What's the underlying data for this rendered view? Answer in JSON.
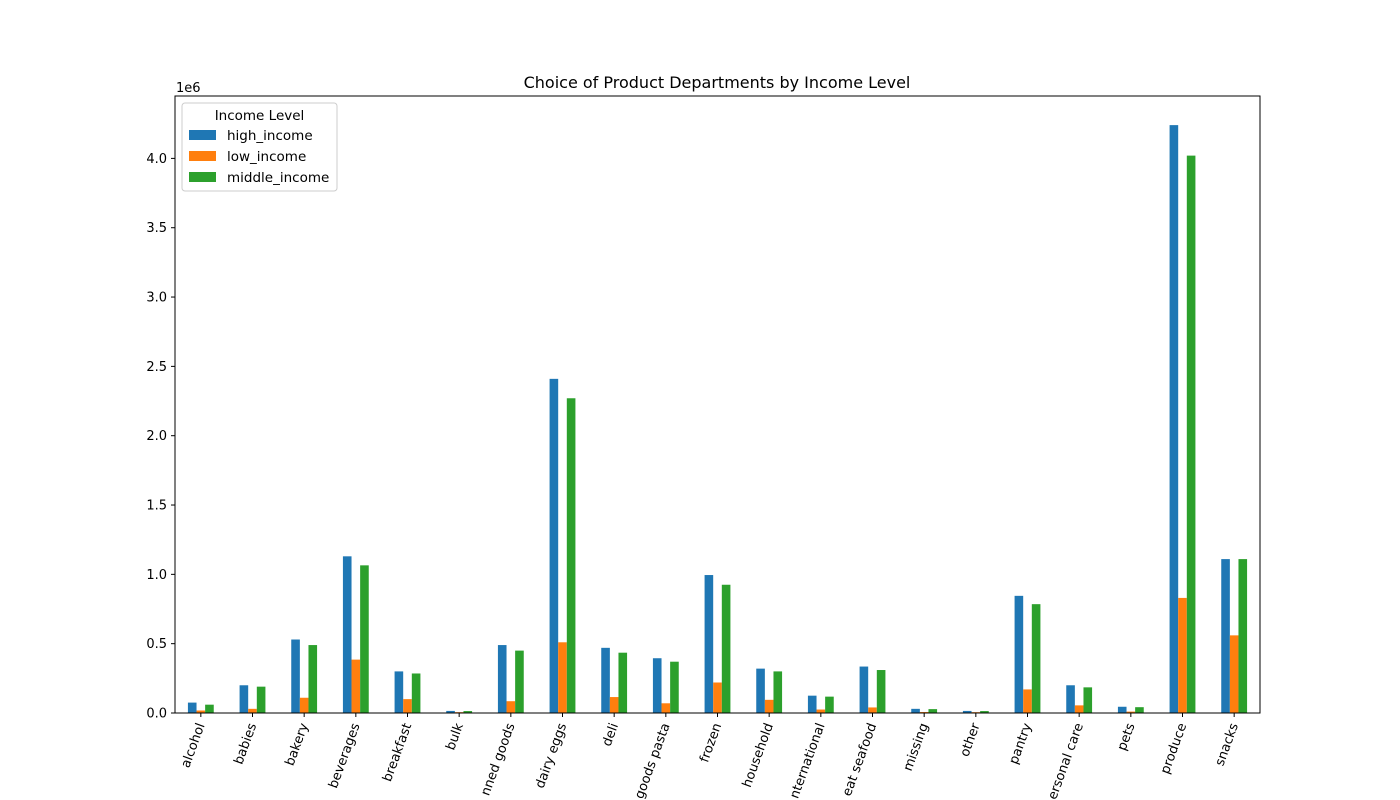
{
  "chart_data": {
    "type": "bar",
    "title": "Choice of Product Departments by Income Level",
    "xlabel": "",
    "ylabel": "",
    "y_offset_label": "1e6",
    "ylim": [
      0,
      4.45
    ],
    "yticks": [
      "0.0",
      "0.5",
      "1.0",
      "1.5",
      "2.0",
      "2.5",
      "3.0",
      "3.5",
      "4.0"
    ],
    "grid": false,
    "legend": {
      "title": "Income Level",
      "placement": "top-left"
    },
    "categories": [
      "alcohol",
      "babies",
      "bakery",
      "beverages",
      "breakfast",
      "bulk",
      "canned goods",
      "dairy eggs",
      "deli",
      "dry goods pasta",
      "frozen",
      "household",
      "international",
      "meat seafood",
      "missing",
      "other",
      "pantry",
      "personal care",
      "pets",
      "produce",
      "snacks"
    ],
    "category_labels": [
      "alcohol",
      "babies",
      "bakery",
      "beverages",
      "breakfast",
      "bulk",
      "nned goods",
      "dairy eggs",
      "deli",
      "goods pasta",
      "frozen",
      "household",
      "nternational",
      "eat seafood",
      "missing",
      "other",
      "pantry",
      "ersonal care",
      "pets",
      "produce",
      "snacks"
    ],
    "series": [
      {
        "name": "high_income",
        "color": "#1f77b4",
        "values": [
          0.075,
          0.2,
          0.53,
          1.13,
          0.3,
          0.015,
          0.49,
          2.41,
          0.47,
          0.395,
          0.995,
          0.32,
          0.125,
          0.335,
          0.03,
          0.015,
          0.845,
          0.2,
          0.045,
          4.24,
          1.11
        ]
      },
      {
        "name": "low_income",
        "color": "#ff7f0e",
        "values": [
          0.018,
          0.03,
          0.11,
          0.385,
          0.1,
          0.006,
          0.085,
          0.51,
          0.115,
          0.07,
          0.22,
          0.095,
          0.025,
          0.04,
          0.007,
          0.006,
          0.17,
          0.055,
          0.01,
          0.83,
          0.56
        ]
      },
      {
        "name": "middle_income",
        "color": "#2ca02c",
        "values": [
          0.06,
          0.19,
          0.49,
          1.065,
          0.285,
          0.014,
          0.45,
          2.27,
          0.435,
          0.37,
          0.925,
          0.3,
          0.118,
          0.31,
          0.028,
          0.014,
          0.785,
          0.185,
          0.042,
          4.02,
          1.11
        ]
      }
    ]
  }
}
